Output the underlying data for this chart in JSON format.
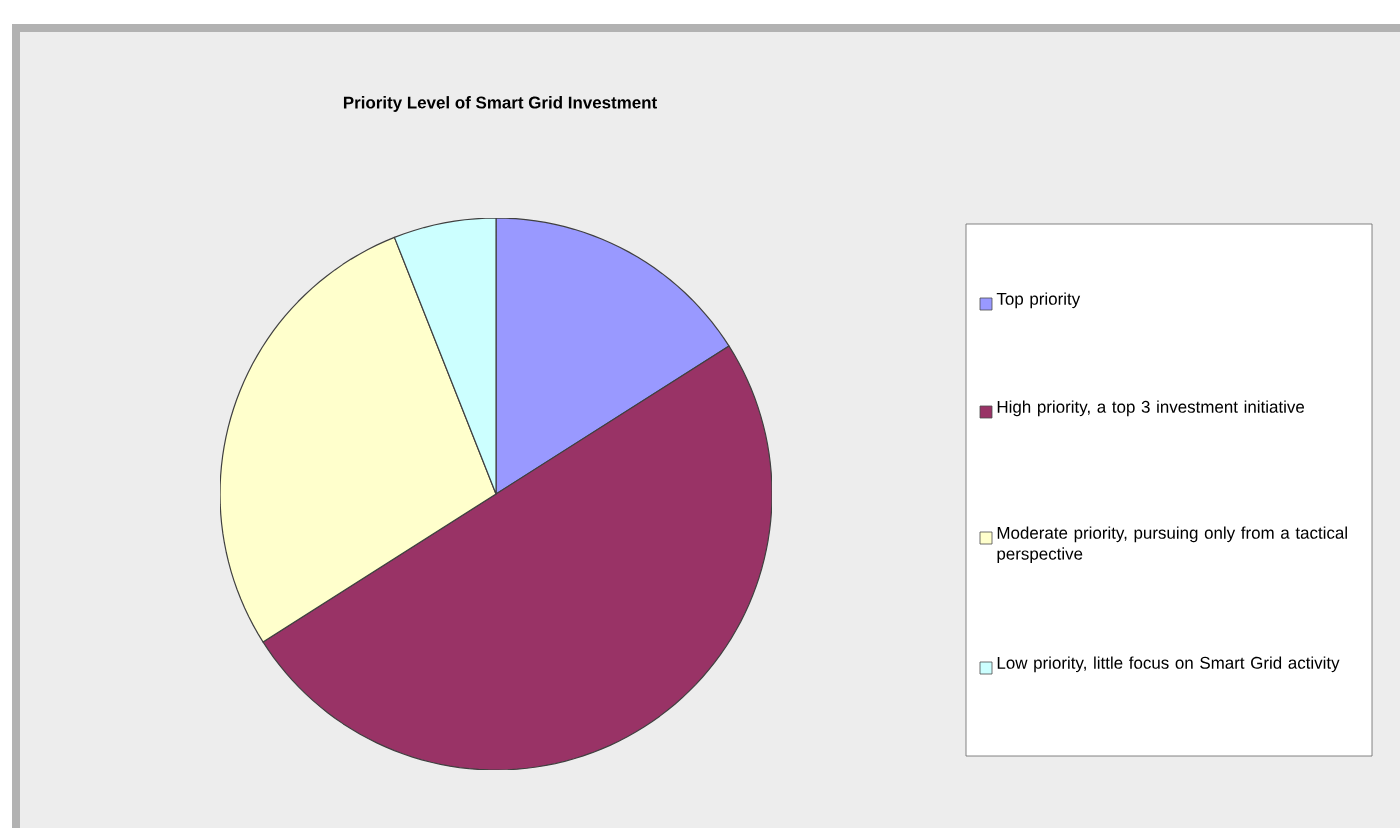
{
  "chart_data": {
    "type": "pie",
    "title": "Priority Level of Smart Grid Investment",
    "categories": [
      "Top priority",
      "High priority, a top 3 investment initiative",
      "Moderate priority, pursuing only from a tactical perspective",
      "Low priority, little focus on Smart Grid activity"
    ],
    "values": [
      16,
      50,
      28,
      6
    ],
    "colors": [
      "#9999ff",
      "#993366",
      "#ffffcc",
      "#ccffff"
    ],
    "legend": "right"
  }
}
